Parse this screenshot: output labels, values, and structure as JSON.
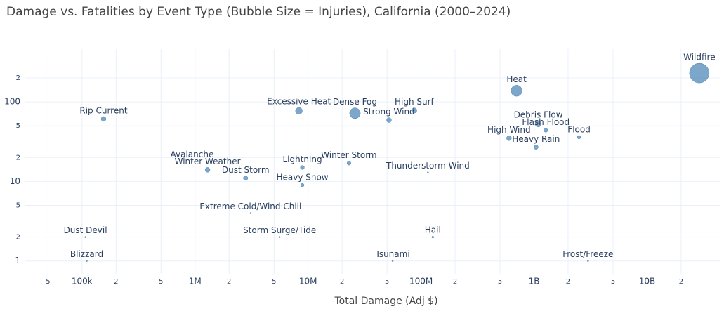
{
  "chart_data": {
    "type": "scatter",
    "title": "Damage vs. Fatalities by Event Type (Bubble Size = Injuries), California (2000–2024)",
    "x_label": "Total Damage (Adj $)",
    "x_scale": "log",
    "y_scale": "log",
    "color": "#4682b4",
    "grid": true,
    "labels": [
      "Wildfire",
      "Heat",
      "Excessive Heat",
      "Dense Fog",
      "Strong Wind",
      "High Surf",
      "Rip Current",
      "Debris Flow",
      "Flash Flood",
      "High Wind",
      "Flood",
      "Heavy Rain",
      "Avalanche",
      "Winter Weather",
      "Dust Storm",
      "Lightning",
      "Winter Storm",
      "Heavy Snow",
      "Thunderstorm Wind",
      "Extreme Cold/Wind Chill",
      "Dust Devil",
      "Storm Surge/Tide",
      "Hail",
      "Blizzard",
      "Tsunami",
      "Frost/Freeze"
    ],
    "x": [
      29000000000,
      700000000,
      8300000,
      26000000,
      52000000,
      87000000,
      155000,
      1090000000,
      1270000000,
      600000000,
      2500000000,
      1040000000,
      940000,
      1290000,
      2800000,
      8900000,
      23000000,
      8900000,
      115000000,
      3100000,
      107000,
      5600000,
      127000000,
      110000,
      56000000,
      3000000000
    ],
    "values": [
      230,
      138,
      77,
      72,
      59,
      78,
      61,
      53,
      44,
      35,
      36,
      27,
      18,
      14,
      11,
      15,
      17,
      9,
      13,
      4,
      2,
      2,
      2,
      1,
      1,
      1
    ],
    "sizes": [
      1000,
      320,
      120,
      300,
      60,
      70,
      60,
      100,
      40,
      60,
      30,
      50,
      2,
      60,
      50,
      40,
      40,
      30,
      5,
      3,
      3,
      2,
      10,
      1,
      1,
      2
    ],
    "xlim": [
      31000,
      44000000000
    ],
    "ylim": [
      0.69,
      460
    ],
    "xticks": [
      {
        "value": 50000,
        "label": "5"
      },
      {
        "value": 100000,
        "label": "100k"
      },
      {
        "value": 200000,
        "label": "2"
      },
      {
        "value": 500000,
        "label": "5"
      },
      {
        "value": 1000000,
        "label": "1M"
      },
      {
        "value": 2000000,
        "label": "2"
      },
      {
        "value": 5000000,
        "label": "5"
      },
      {
        "value": 10000000,
        "label": "10M"
      },
      {
        "value": 20000000,
        "label": "2"
      },
      {
        "value": 50000000,
        "label": "5"
      },
      {
        "value": 100000000,
        "label": "100M"
      },
      {
        "value": 200000000,
        "label": "2"
      },
      {
        "value": 500000000,
        "label": "5"
      },
      {
        "value": 1000000000,
        "label": "1B"
      },
      {
        "value": 2000000000,
        "label": "2"
      },
      {
        "value": 5000000000,
        "label": "5"
      },
      {
        "value": 10000000000,
        "label": "10B"
      },
      {
        "value": 20000000000,
        "label": "2"
      }
    ],
    "yticks": [
      1,
      2,
      5,
      10,
      {
        "value": 20,
        "label": "2"
      },
      {
        "value": 50,
        "label": "5"
      },
      100,
      {
        "value": 200,
        "label": "2"
      }
    ]
  }
}
